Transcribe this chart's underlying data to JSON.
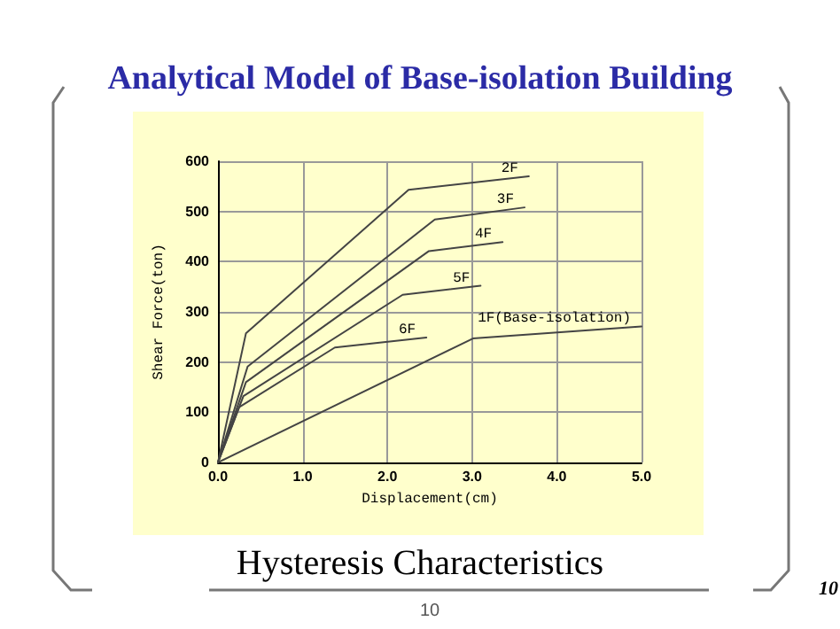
{
  "chart_data": {
    "type": "line",
    "title": "Analytical Model of Base-isolation Building",
    "subtitle": "Hysteresis Characteristics",
    "xlabel": "Displacement(cm)",
    "ylabel": "Shear Force(ton)",
    "xlim": [
      0,
      5
    ],
    "xticks": [
      {
        "value": 0,
        "label": "0.0"
      },
      {
        "value": 1,
        "label": "1.0"
      },
      {
        "value": 2,
        "label": "2.0"
      },
      {
        "value": 3,
        "label": "3.0"
      },
      {
        "value": 4,
        "label": "4.0"
      },
      {
        "value": 5,
        "label": "5.0"
      }
    ],
    "ylim": [
      0,
      600
    ],
    "yticks": [
      0,
      100,
      200,
      300,
      400,
      500,
      600
    ],
    "grid": true,
    "legend": false,
    "marker": "none",
    "line_style": "solid",
    "series": [
      {
        "name": "2F",
        "color": "#444444",
        "x": [
          0,
          0.33,
          2.25,
          3.67
        ],
        "values": [
          0,
          257,
          543,
          570
        ]
      },
      {
        "name": "3F",
        "color": "#444444",
        "x": [
          0,
          0.35,
          2.56,
          3.62
        ],
        "values": [
          0,
          191,
          484,
          508
        ]
      },
      {
        "name": "4F",
        "color": "#444444",
        "x": [
          0,
          0.33,
          2.49,
          3.36
        ],
        "values": [
          0,
          160,
          421,
          439
        ]
      },
      {
        "name": "5F",
        "color": "#444444",
        "x": [
          0,
          0.3,
          2.18,
          3.1
        ],
        "values": [
          0,
          132,
          334,
          352
        ]
      },
      {
        "name": "6F",
        "color": "#444444",
        "x": [
          0,
          0.25,
          1.38,
          2.46
        ],
        "values": [
          0,
          110,
          229,
          249
        ]
      },
      {
        "name": "1F(Base-isolation)",
        "color": "#444444",
        "x": [
          0,
          3.01,
          5
        ],
        "values": [
          0,
          247,
          271
        ]
      }
    ],
    "annotations": [
      "10",
      "10"
    ]
  }
}
